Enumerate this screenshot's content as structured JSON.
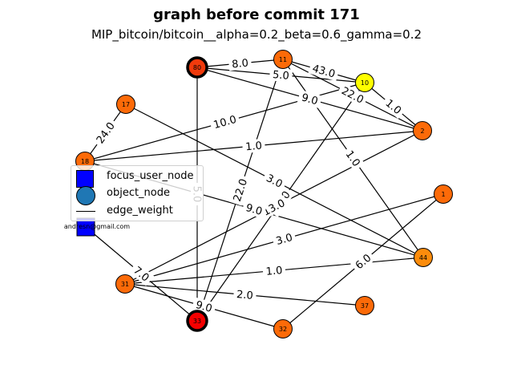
{
  "title": "graph before commit 171",
  "subtitle": "MIP_bitcoin/bitcoin__alpha=0.2_beta=0.6_gamma=0.2",
  "legend": {
    "focus_user_node": "focus_user_node",
    "object_node": "object_node",
    "edge_weight": "edge_weight"
  },
  "colors": {
    "focus": "#0000ff",
    "object": "#1f77b4",
    "orange": "#fc6a08",
    "deep_orange": "#f03a0c",
    "red": "#f40000",
    "yellow": "#ffff00"
  },
  "nodes": [
    {
      "id": "80",
      "label": "80",
      "color": "#f03a0c",
      "highlight": true
    },
    {
      "id": "11",
      "label": "11",
      "color": "#fc6a08",
      "highlight": false
    },
    {
      "id": "10",
      "label": "10",
      "color": "#ffff00",
      "highlight": false
    },
    {
      "id": "17",
      "label": "17",
      "color": "#fc6a08",
      "highlight": false
    },
    {
      "id": "2",
      "label": "2",
      "color": "#fc6a08",
      "highlight": false
    },
    {
      "id": "18",
      "label": "18",
      "color": "#fc6a08",
      "highlight": false
    },
    {
      "id": "1",
      "label": "1",
      "color": "#fc6a08",
      "highlight": false
    },
    {
      "id": "44",
      "label": "44",
      "color": "#fc8c0c",
      "highlight": false
    },
    {
      "id": "31",
      "label": "31",
      "color": "#fc6a08",
      "highlight": false
    },
    {
      "id": "37",
      "label": "37",
      "color": "#fc6a08",
      "highlight": false
    },
    {
      "id": "33",
      "label": "33",
      "color": "#f40000",
      "highlight": true
    },
    {
      "id": "32",
      "label": "32",
      "color": "#fc6a08",
      "highlight": false
    }
  ],
  "user_node": {
    "label": "andresn@gmail.com",
    "color": "#0000ff"
  },
  "edges": [
    {
      "from": "80",
      "to": "11",
      "label": "8.0"
    },
    {
      "from": "80",
      "to": "10",
      "label": "5.0"
    },
    {
      "from": "80",
      "to": "2",
      "label": "9.0"
    },
    {
      "from": "80",
      "to": "33",
      "label": "5.0"
    },
    {
      "from": "11",
      "to": "10",
      "label": "43.0"
    },
    {
      "from": "11",
      "to": "2",
      "label": "22.0"
    },
    {
      "from": "11",
      "to": "44",
      "label": "1.0"
    },
    {
      "from": "11",
      "to": "33",
      "label": "22.0"
    },
    {
      "from": "10",
      "to": "2",
      "label": "1.0"
    },
    {
      "from": "10",
      "to": "18",
      "label": "10.0"
    },
    {
      "from": "10",
      "to": "33",
      "label": "83.0"
    },
    {
      "from": "2",
      "to": "18",
      "label": "1.0"
    },
    {
      "from": "2",
      "to": "31",
      "label": "13.0"
    },
    {
      "from": "17",
      "to": "18",
      "label": "24.0"
    },
    {
      "from": "17",
      "to": "44",
      "label": "3.0"
    },
    {
      "from": "18",
      "to": "44",
      "label": "9.0"
    },
    {
      "from": "1",
      "to": "31",
      "label": "3.0"
    },
    {
      "from": "1",
      "to": "32",
      "label": "6.0"
    },
    {
      "from": "44",
      "to": "31",
      "label": "1.0"
    },
    {
      "from": "31",
      "to": "37",
      "label": "2.0"
    },
    {
      "from": "31",
      "to": "32",
      "label": "9.0"
    },
    {
      "from": "user",
      "to": "33",
      "label": "7.0"
    }
  ]
}
